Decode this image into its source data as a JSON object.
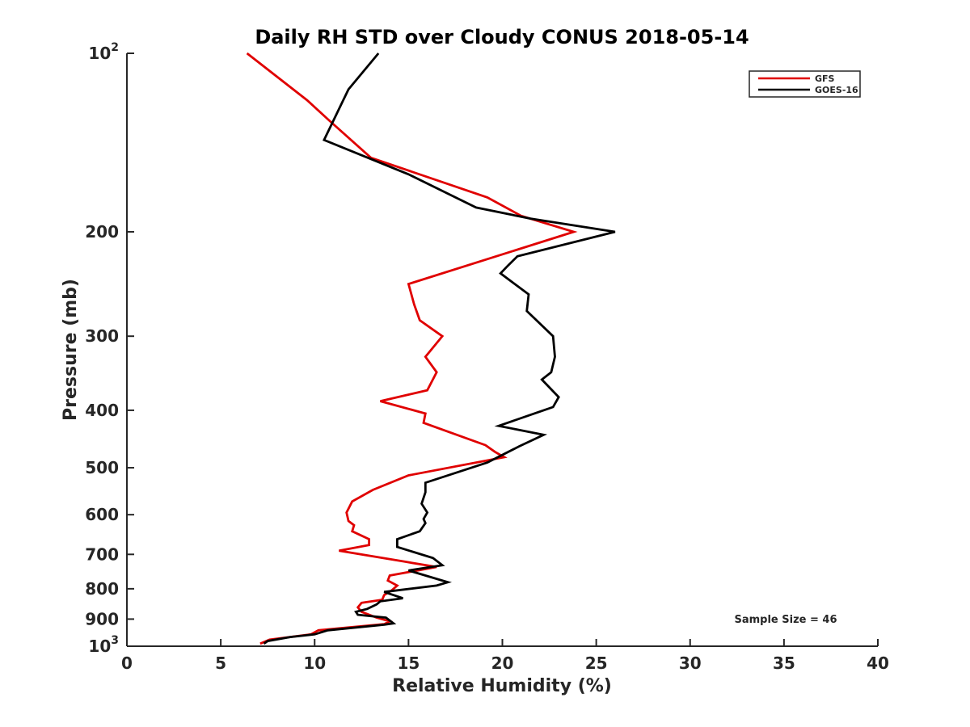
{
  "chart_data": {
    "type": "line",
    "title": "Daily RH STD over Cloudy CONUS 2018-05-14",
    "xlabel": "Relative Humidity (%)",
    "ylabel": "Pressure (mb)",
    "xlim": [
      0,
      40
    ],
    "ylim": [
      100,
      1000
    ],
    "yscale": "log",
    "y_reversed": true,
    "grid": false,
    "x_ticks": [
      0,
      5,
      10,
      15,
      20,
      25,
      30,
      35,
      40
    ],
    "y_ticks": [
      {
        "value": 100,
        "base": "10",
        "exp": "2"
      },
      {
        "value": 200,
        "label": "200"
      },
      {
        "value": 300,
        "label": "300"
      },
      {
        "value": 400,
        "label": "400"
      },
      {
        "value": 500,
        "label": "500"
      },
      {
        "value": 600,
        "label": "600"
      },
      {
        "value": 700,
        "label": "700"
      },
      {
        "value": 800,
        "label": "800"
      },
      {
        "value": 900,
        "label": "900"
      },
      {
        "value": 1000,
        "base": "10",
        "exp": "3"
      }
    ],
    "legend": {
      "placement": "top-right"
    },
    "annotation": "Sample Size = 46",
    "series": [
      {
        "name": "GFS",
        "color": "#e00000",
        "points": [
          [
            6.4,
            100
          ],
          [
            9.6,
            120
          ],
          [
            10.8,
            130
          ],
          [
            13.0,
            150
          ],
          [
            19.2,
            175
          ],
          [
            21.0,
            188
          ],
          [
            23.8,
            200
          ],
          [
            15.0,
            245
          ],
          [
            15.3,
            265
          ],
          [
            15.6,
            282
          ],
          [
            16.8,
            300
          ],
          [
            15.9,
            325
          ],
          [
            16.5,
            345
          ],
          [
            16.0,
            370
          ],
          [
            13.5,
            386
          ],
          [
            15.9,
            405
          ],
          [
            15.8,
            420
          ],
          [
            19.1,
            458
          ],
          [
            19.6,
            470
          ],
          [
            20.1,
            480
          ],
          [
            15.0,
            515
          ],
          [
            13.1,
            545
          ],
          [
            12.0,
            570
          ],
          [
            11.7,
            595
          ],
          [
            11.8,
            615
          ],
          [
            12.1,
            625
          ],
          [
            12.0,
            640
          ],
          [
            12.9,
            660
          ],
          [
            12.9,
            675
          ],
          [
            11.3,
            690
          ],
          [
            14.8,
            720
          ],
          [
            16.5,
            735
          ],
          [
            14.0,
            760
          ],
          [
            13.9,
            775
          ],
          [
            14.4,
            790
          ],
          [
            14.1,
            805
          ],
          [
            13.7,
            820
          ],
          [
            13.6,
            835
          ],
          [
            12.5,
            845
          ],
          [
            12.3,
            860
          ],
          [
            12.5,
            875
          ],
          [
            13.3,
            895
          ],
          [
            14.0,
            908
          ],
          [
            13.7,
            918
          ],
          [
            10.2,
            940
          ],
          [
            9.8,
            955
          ],
          [
            7.6,
            975
          ],
          [
            7.1,
            990
          ]
        ]
      },
      {
        "name": "GOES-16",
        "color": "#000000",
        "points": [
          [
            13.4,
            100
          ],
          [
            11.8,
            115
          ],
          [
            10.5,
            140
          ],
          [
            15.0,
            160
          ],
          [
            18.6,
            182
          ],
          [
            21.5,
            190
          ],
          [
            26.0,
            200
          ],
          [
            20.8,
            220
          ],
          [
            20.3,
            228
          ],
          [
            19.9,
            235
          ],
          [
            21.4,
            255
          ],
          [
            21.3,
            272
          ],
          [
            22.7,
            300
          ],
          [
            22.8,
            325
          ],
          [
            22.6,
            345
          ],
          [
            22.1,
            355
          ],
          [
            23.0,
            380
          ],
          [
            22.7,
            395
          ],
          [
            19.8,
            425
          ],
          [
            22.2,
            440
          ],
          [
            20.9,
            460
          ],
          [
            19.2,
            490
          ],
          [
            15.9,
            530
          ],
          [
            15.9,
            550
          ],
          [
            15.7,
            575
          ],
          [
            16.0,
            595
          ],
          [
            15.8,
            610
          ],
          [
            15.9,
            620
          ],
          [
            15.6,
            640
          ],
          [
            14.4,
            660
          ],
          [
            14.4,
            680
          ],
          [
            16.3,
            710
          ],
          [
            16.8,
            730
          ],
          [
            15.0,
            745
          ],
          [
            17.1,
            780
          ],
          [
            16.5,
            790
          ],
          [
            13.7,
            810
          ],
          [
            14.7,
            830
          ],
          [
            13.5,
            840
          ],
          [
            13.3,
            850
          ],
          [
            12.8,
            865
          ],
          [
            12.2,
            875
          ],
          [
            12.3,
            885
          ],
          [
            13.8,
            895
          ],
          [
            14.2,
            915
          ],
          [
            13.7,
            920
          ],
          [
            10.7,
            940
          ],
          [
            10.0,
            955
          ],
          [
            8.7,
            965
          ],
          [
            7.5,
            980
          ],
          [
            7.3,
            990
          ]
        ]
      }
    ]
  }
}
